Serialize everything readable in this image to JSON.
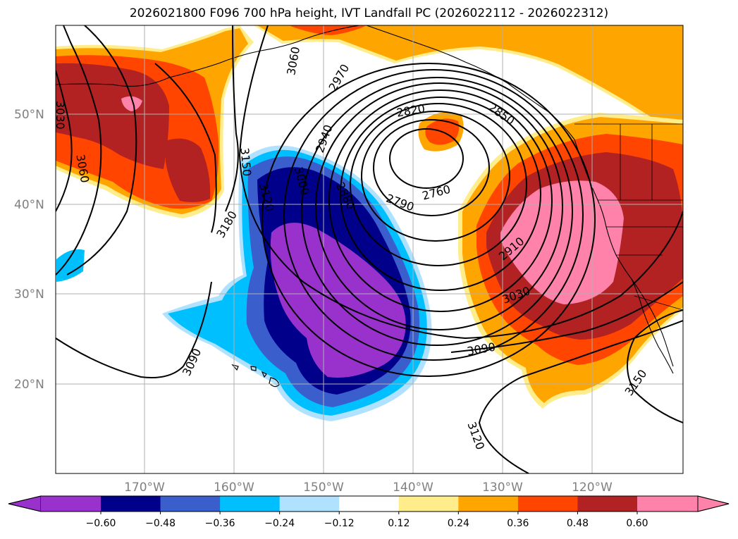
{
  "title": "2026021800 F096 700 hPa height, IVT Landfall PC (2026022112 - 2026022312)",
  "latitude_labels": [
    "50°N",
    "40°N",
    "30°N",
    "20°N"
  ],
  "longitude_labels": [
    "170°W",
    "160°W",
    "150°W",
    "140°W",
    "130°W",
    "120°W"
  ],
  "contour_labels": [
    "3030",
    "3060",
    "3060",
    "2970",
    "2820",
    "2850",
    "2940",
    "3150",
    "3000",
    "3120",
    "2880",
    "2760",
    "2790",
    "3180",
    "2910",
    "3030",
    "3090",
    "3090",
    "3150",
    "3120"
  ],
  "colorbar": {
    "ticks": [
      "−0.60",
      "−0.48",
      "−0.36",
      "−0.24",
      "−0.12",
      "0.12",
      "0.24",
      "0.36",
      "0.48",
      "0.60"
    ],
    "colors": [
      "#9932cc",
      "#00008b",
      "#3a5fcd",
      "#00bfff",
      "#b0e2ff",
      "#ffffff",
      "#ffec8b",
      "#ffa500",
      "#ff4500",
      "#b22222",
      "#ff82ab"
    ]
  }
}
